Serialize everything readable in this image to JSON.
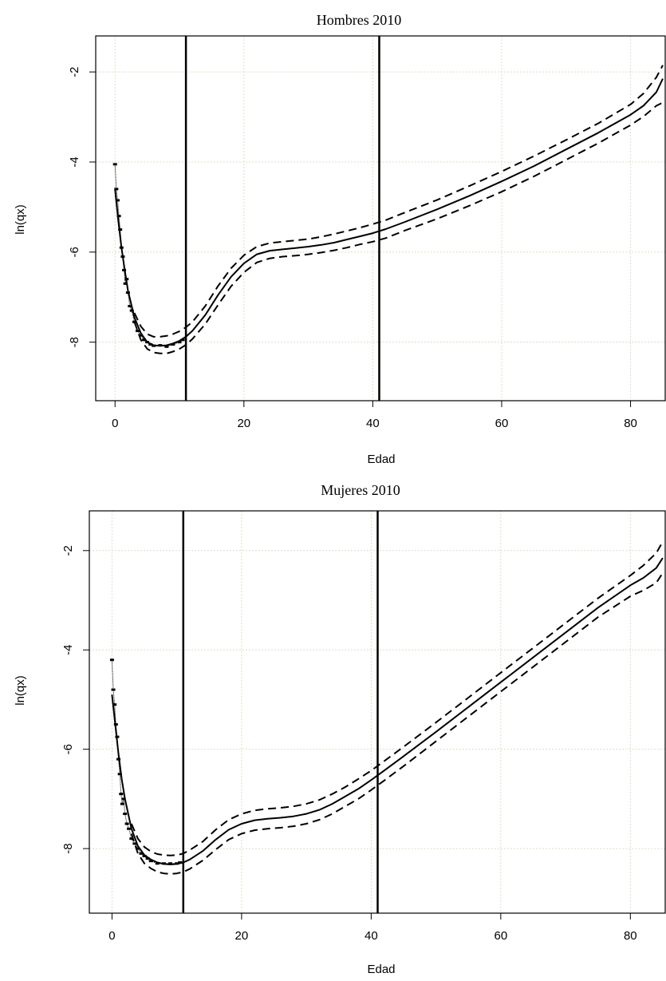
{
  "chart_data": [
    {
      "type": "line",
      "title": "Hombres 2010",
      "xlabel": "Edad",
      "ylabel": "ln(qx)",
      "xlim": [
        -3,
        85.5
      ],
      "ylim": [
        -9.3,
        -1.2
      ],
      "xticks": [
        0,
        20,
        40,
        60,
        80
      ],
      "yticks": [
        -2,
        -4,
        -6,
        -8
      ],
      "grid": true,
      "vlines": [
        11,
        41
      ],
      "series": [
        {
          "style": "solid",
          "x": [
            0,
            0.5,
            1,
            1.5,
            2,
            3,
            4,
            5,
            6,
            7,
            8,
            9,
            10,
            11,
            12,
            14,
            16,
            18,
            20,
            22,
            24,
            26,
            28,
            30,
            32,
            34,
            36,
            38,
            40,
            42,
            45,
            50,
            55,
            60,
            65,
            70,
            75,
            80,
            82,
            84,
            85
          ],
          "y": [
            -4.6,
            -5.3,
            -5.9,
            -6.4,
            -6.85,
            -7.45,
            -7.8,
            -8.0,
            -8.07,
            -8.08,
            -8.07,
            -8.03,
            -7.97,
            -7.88,
            -7.75,
            -7.4,
            -6.95,
            -6.55,
            -6.25,
            -6.05,
            -5.97,
            -5.94,
            -5.91,
            -5.88,
            -5.84,
            -5.79,
            -5.72,
            -5.65,
            -5.58,
            -5.49,
            -5.33,
            -5.05,
            -4.75,
            -4.43,
            -4.09,
            -3.72,
            -3.35,
            -2.95,
            -2.75,
            -2.45,
            -2.15
          ]
        },
        {
          "style": "dashed",
          "x": [
            3,
            4,
            5,
            6,
            7,
            8,
            9,
            10,
            11,
            12,
            14,
            16,
            18,
            20,
            22,
            24,
            26,
            28,
            30,
            32,
            34,
            36,
            38,
            40,
            42,
            45,
            50,
            55,
            60,
            65,
            70,
            75,
            80,
            82,
            84,
            85
          ],
          "y": [
            -7.35,
            -7.65,
            -7.82,
            -7.88,
            -7.88,
            -7.86,
            -7.82,
            -7.76,
            -7.67,
            -7.55,
            -7.2,
            -6.75,
            -6.36,
            -6.07,
            -5.88,
            -5.8,
            -5.77,
            -5.74,
            -5.71,
            -5.66,
            -5.6,
            -5.53,
            -5.46,
            -5.38,
            -5.29,
            -5.12,
            -4.84,
            -4.53,
            -4.21,
            -3.87,
            -3.51,
            -3.14,
            -2.72,
            -2.48,
            -2.12,
            -1.85
          ]
        },
        {
          "style": "dashed",
          "x": [
            3,
            4,
            5,
            6,
            7,
            8,
            9,
            10,
            11,
            12,
            14,
            16,
            18,
            20,
            22,
            24,
            26,
            28,
            30,
            32,
            34,
            36,
            38,
            40,
            42,
            45,
            50,
            55,
            60,
            65,
            70,
            75,
            80,
            82,
            84,
            85
          ],
          "y": [
            -7.55,
            -7.95,
            -8.15,
            -8.23,
            -8.25,
            -8.25,
            -8.21,
            -8.15,
            -8.06,
            -7.93,
            -7.6,
            -7.17,
            -6.76,
            -6.45,
            -6.23,
            -6.14,
            -6.1,
            -6.08,
            -6.05,
            -6.01,
            -5.96,
            -5.9,
            -5.83,
            -5.77,
            -5.69,
            -5.52,
            -5.26,
            -4.97,
            -4.66,
            -4.32,
            -3.95,
            -3.58,
            -3.18,
            -2.99,
            -2.75,
            -2.68
          ]
        }
      ],
      "observed": {
        "x": [
          0,
          0.2,
          0.4,
          0.6,
          0.8,
          1,
          1.2,
          1.4,
          1.6,
          1.8,
          2,
          2.3,
          2.6,
          3,
          3.5,
          4,
          4.5,
          5,
          5.5,
          6,
          7,
          8,
          9,
          10,
          10.5
        ],
        "y": [
          -4.05,
          -4.6,
          -4.85,
          -5.2,
          -5.5,
          -5.9,
          -6.1,
          -6.4,
          -6.7,
          -6.6,
          -6.9,
          -7.2,
          -7.3,
          -7.55,
          -7.75,
          -7.85,
          -7.95,
          -8.0,
          -8.05,
          -8.08,
          -8.07,
          -8.1,
          -8.05,
          -8.0,
          -7.95
        ]
      }
    },
    {
      "type": "line",
      "title": "Mujeres 2010",
      "xlabel": "Edad",
      "ylabel": "ln(qx)",
      "xlim": [
        -3.5,
        85.5
      ],
      "ylim": [
        -9.3,
        -1.2
      ],
      "xticks": [
        0,
        20,
        40,
        60,
        80
      ],
      "yticks": [
        -2,
        -4,
        -6,
        -8
      ],
      "grid": true,
      "vlines": [
        11,
        41
      ],
      "series": [
        {
          "style": "solid",
          "x": [
            0,
            0.5,
            1,
            1.5,
            2,
            3,
            4,
            5,
            6,
            7,
            8,
            9,
            10,
            11,
            12,
            14,
            16,
            18,
            20,
            22,
            24,
            26,
            28,
            30,
            32,
            34,
            36,
            38,
            40,
            42,
            45,
            50,
            55,
            60,
            65,
            70,
            75,
            80,
            82,
            84,
            85
          ],
          "y": [
            -4.9,
            -5.5,
            -6.1,
            -6.6,
            -7.0,
            -7.6,
            -7.95,
            -8.13,
            -8.22,
            -8.28,
            -8.31,
            -8.32,
            -8.31,
            -8.28,
            -8.22,
            -8.05,
            -7.82,
            -7.62,
            -7.5,
            -7.43,
            -7.4,
            -7.38,
            -7.35,
            -7.3,
            -7.22,
            -7.1,
            -6.95,
            -6.8,
            -6.62,
            -6.43,
            -6.14,
            -5.65,
            -5.15,
            -4.65,
            -4.15,
            -3.65,
            -3.15,
            -2.7,
            -2.55,
            -2.35,
            -2.15
          ]
        },
        {
          "style": "dashed",
          "x": [
            3,
            4,
            5,
            6,
            7,
            8,
            9,
            10,
            11,
            12,
            14,
            16,
            18,
            20,
            22,
            24,
            26,
            28,
            30,
            32,
            34,
            36,
            38,
            40,
            42,
            45,
            50,
            55,
            60,
            65,
            70,
            75,
            80,
            82,
            84,
            85
          ],
          "y": [
            -7.5,
            -7.8,
            -7.97,
            -8.06,
            -8.11,
            -8.13,
            -8.14,
            -8.13,
            -8.1,
            -8.03,
            -7.86,
            -7.62,
            -7.42,
            -7.3,
            -7.23,
            -7.2,
            -7.18,
            -7.15,
            -7.1,
            -7.02,
            -6.9,
            -6.76,
            -6.6,
            -6.43,
            -6.24,
            -5.95,
            -5.46,
            -4.96,
            -4.46,
            -3.96,
            -3.46,
            -2.96,
            -2.5,
            -2.3,
            -2.05,
            -1.82
          ]
        },
        {
          "style": "dashed",
          "x": [
            3,
            4,
            5,
            6,
            7,
            8,
            9,
            10,
            11,
            12,
            14,
            16,
            18,
            20,
            22,
            24,
            26,
            28,
            30,
            32,
            34,
            36,
            38,
            40,
            42,
            45,
            50,
            55,
            60,
            65,
            70,
            75,
            80,
            82,
            84,
            85
          ],
          "y": [
            -7.7,
            -8.1,
            -8.3,
            -8.4,
            -8.47,
            -8.5,
            -8.51,
            -8.5,
            -8.47,
            -8.41,
            -8.24,
            -8.02,
            -7.82,
            -7.7,
            -7.63,
            -7.6,
            -7.58,
            -7.55,
            -7.5,
            -7.42,
            -7.3,
            -7.15,
            -7.0,
            -6.82,
            -6.63,
            -6.34,
            -5.84,
            -5.34,
            -4.84,
            -4.34,
            -3.84,
            -3.34,
            -2.92,
            -2.8,
            -2.65,
            -2.45
          ]
        }
      ],
      "observed": {
        "x": [
          0,
          0.2,
          0.4,
          0.6,
          0.8,
          1,
          1.2,
          1.4,
          1.6,
          1.8,
          2,
          2.3,
          2.6,
          3,
          3.5,
          4,
          4.5,
          5,
          5.5,
          6,
          7,
          8,
          9,
          10,
          10.5
        ],
        "y": [
          -4.2,
          -4.8,
          -5.1,
          -5.5,
          -5.75,
          -6.2,
          -6.5,
          -6.9,
          -7.1,
          -7.0,
          -7.3,
          -7.5,
          -7.6,
          -7.8,
          -7.9,
          -8.0,
          -8.1,
          -8.15,
          -8.2,
          -8.25,
          -8.3,
          -8.3,
          -8.3,
          -8.3,
          -8.28
        ]
      }
    }
  ]
}
